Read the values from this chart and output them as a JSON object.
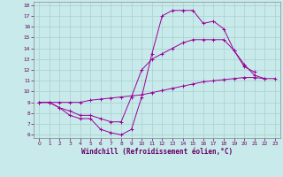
{
  "background_color": "#c8eaea",
  "grid_color": "#a8d0d0",
  "line_color": "#990099",
  "xlabel": "Windchill (Refroidissement éolien,°C)",
  "xlim": [
    0,
    23
  ],
  "ylim": [
    6,
    18
  ],
  "xticks": [
    0,
    1,
    2,
    3,
    4,
    5,
    6,
    7,
    8,
    9,
    10,
    11,
    12,
    13,
    14,
    15,
    16,
    17,
    18,
    19,
    20,
    21,
    22,
    23
  ],
  "yticks": [
    6,
    7,
    8,
    9,
    10,
    11,
    12,
    13,
    14,
    15,
    16,
    17,
    18
  ],
  "series": [
    {
      "x": [
        0,
        1,
        2,
        3,
        4,
        5,
        6,
        7,
        8,
        9,
        10,
        11,
        12,
        13,
        14,
        15,
        16,
        17,
        18,
        19,
        20,
        21,
        22
      ],
      "y": [
        9.0,
        9.0,
        8.5,
        7.8,
        7.5,
        7.5,
        6.5,
        6.2,
        6.0,
        6.5,
        9.5,
        13.5,
        17.0,
        17.5,
        17.5,
        17.5,
        16.3,
        16.5,
        15.8,
        13.8,
        12.5,
        11.5,
        11.2
      ]
    },
    {
      "x": [
        0,
        1,
        2,
        3,
        4,
        5,
        6,
        7,
        8,
        9,
        10,
        11,
        12,
        13,
        14,
        15,
        16,
        17,
        18,
        19,
        20,
        21
      ],
      "y": [
        9.0,
        9.0,
        8.5,
        8.2,
        7.8,
        7.8,
        7.5,
        7.2,
        7.2,
        9.5,
        12.0,
        13.0,
        13.5,
        14.0,
        14.5,
        14.8,
        14.8,
        14.8,
        14.8,
        13.8,
        12.3,
        11.8
      ]
    },
    {
      "x": [
        0,
        1,
        2,
        3,
        4,
        5,
        6,
        7,
        8,
        9,
        10,
        11,
        12,
        13,
        14,
        15,
        16,
        17,
        18,
        19,
        20,
        21,
        22,
        23
      ],
      "y": [
        9.0,
        9.0,
        9.0,
        9.0,
        9.0,
        9.2,
        9.3,
        9.4,
        9.5,
        9.6,
        9.7,
        9.9,
        10.1,
        10.3,
        10.5,
        10.7,
        10.9,
        11.0,
        11.1,
        11.2,
        11.3,
        11.3,
        11.2,
        11.2
      ]
    }
  ]
}
